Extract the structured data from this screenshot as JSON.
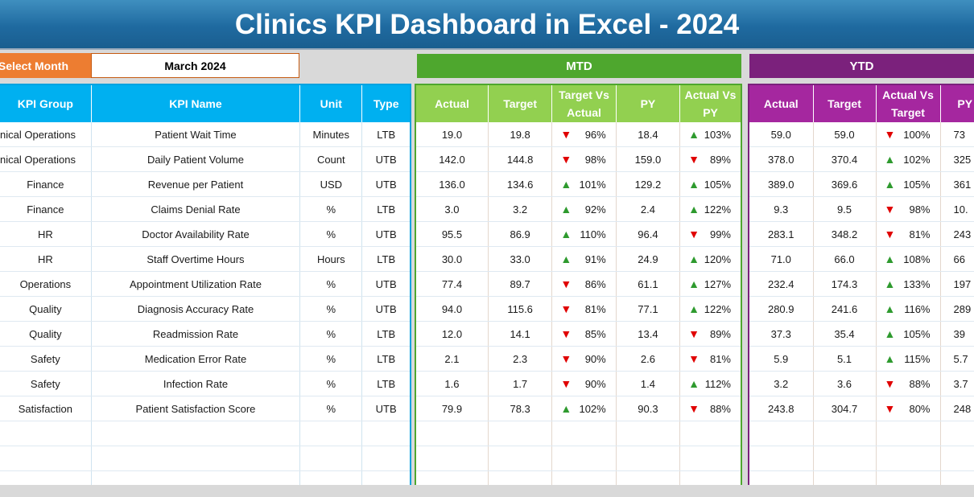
{
  "title": "Clinics KPI Dashboard in Excel - 2024",
  "month_selector": {
    "label": "Select Month",
    "value": "March 2024"
  },
  "sections": {
    "mtd": "MTD",
    "ytd": "YTD"
  },
  "left_headers": [
    "KPI Group",
    "KPI Name",
    "Unit",
    "Type"
  ],
  "mtd_headers": [
    "Actual",
    "Target",
    "Target Vs Actual",
    "PY",
    "Actual Vs PY"
  ],
  "ytd_headers": [
    "Actual",
    "Target",
    "Actual Vs Target",
    "PY"
  ],
  "colors": {
    "up": "#2e9a2e",
    "down": "#e00000",
    "mtd": "#92d050",
    "ytd": "#a5279f",
    "left": "#00b0f0"
  },
  "rows": [
    {
      "group": "nical Operations",
      "name": "Patient Wait Time",
      "unit": "Minutes",
      "type": "LTB",
      "mtd": {
        "actual": "19.0",
        "target": "19.8",
        "tva_dir": "down",
        "tva": "96%",
        "py": "18.4",
        "avp_dir": "up",
        "avp": "103%"
      },
      "ytd": {
        "actual": "59.0",
        "target": "59.0",
        "avt_dir": "down",
        "avt": "100%",
        "py": "73"
      }
    },
    {
      "group": "nical Operations",
      "name": "Daily Patient Volume",
      "unit": "Count",
      "type": "UTB",
      "mtd": {
        "actual": "142.0",
        "target": "144.8",
        "tva_dir": "down",
        "tva": "98%",
        "py": "159.0",
        "avp_dir": "down",
        "avp": "89%"
      },
      "ytd": {
        "actual": "378.0",
        "target": "370.4",
        "avt_dir": "up",
        "avt": "102%",
        "py": "325"
      }
    },
    {
      "group": "Finance",
      "name": "Revenue per Patient",
      "unit": "USD",
      "type": "UTB",
      "mtd": {
        "actual": "136.0",
        "target": "134.6",
        "tva_dir": "up",
        "tva": "101%",
        "py": "129.2",
        "avp_dir": "up",
        "avp": "105%"
      },
      "ytd": {
        "actual": "389.0",
        "target": "369.6",
        "avt_dir": "up",
        "avt": "105%",
        "py": "361"
      }
    },
    {
      "group": "Finance",
      "name": "Claims Denial Rate",
      "unit": "%",
      "type": "LTB",
      "mtd": {
        "actual": "3.0",
        "target": "3.2",
        "tva_dir": "up",
        "tva": "92%",
        "py": "2.4",
        "avp_dir": "up",
        "avp": "122%"
      },
      "ytd": {
        "actual": "9.3",
        "target": "9.5",
        "avt_dir": "down",
        "avt": "98%",
        "py": "10."
      }
    },
    {
      "group": "HR",
      "name": "Doctor Availability Rate",
      "unit": "%",
      "type": "UTB",
      "mtd": {
        "actual": "95.5",
        "target": "86.9",
        "tva_dir": "up",
        "tva": "110%",
        "py": "96.4",
        "avp_dir": "down",
        "avp": "99%"
      },
      "ytd": {
        "actual": "283.1",
        "target": "348.2",
        "avt_dir": "down",
        "avt": "81%",
        "py": "243"
      }
    },
    {
      "group": "HR",
      "name": "Staff Overtime Hours",
      "unit": "Hours",
      "type": "LTB",
      "mtd": {
        "actual": "30.0",
        "target": "33.0",
        "tva_dir": "up",
        "tva": "91%",
        "py": "24.9",
        "avp_dir": "up",
        "avp": "120%"
      },
      "ytd": {
        "actual": "71.0",
        "target": "66.0",
        "avt_dir": "up",
        "avt": "108%",
        "py": "66"
      }
    },
    {
      "group": "Operations",
      "name": "Appointment Utilization Rate",
      "unit": "%",
      "type": "UTB",
      "mtd": {
        "actual": "77.4",
        "target": "89.7",
        "tva_dir": "down",
        "tva": "86%",
        "py": "61.1",
        "avp_dir": "up",
        "avp": "127%"
      },
      "ytd": {
        "actual": "232.4",
        "target": "174.3",
        "avt_dir": "up",
        "avt": "133%",
        "py": "197"
      }
    },
    {
      "group": "Quality",
      "name": "Diagnosis Accuracy Rate",
      "unit": "%",
      "type": "UTB",
      "mtd": {
        "actual": "94.0",
        "target": "115.6",
        "tva_dir": "down",
        "tva": "81%",
        "py": "77.1",
        "avp_dir": "up",
        "avp": "122%"
      },
      "ytd": {
        "actual": "280.9",
        "target": "241.6",
        "avt_dir": "up",
        "avt": "116%",
        "py": "289"
      }
    },
    {
      "group": "Quality",
      "name": "Readmission Rate",
      "unit": "%",
      "type": "LTB",
      "mtd": {
        "actual": "12.0",
        "target": "14.1",
        "tva_dir": "down",
        "tva": "85%",
        "py": "13.4",
        "avp_dir": "down",
        "avp": "89%"
      },
      "ytd": {
        "actual": "37.3",
        "target": "35.4",
        "avt_dir": "up",
        "avt": "105%",
        "py": "39"
      }
    },
    {
      "group": "Safety",
      "name": "Medication Error Rate",
      "unit": "%",
      "type": "LTB",
      "mtd": {
        "actual": "2.1",
        "target": "2.3",
        "tva_dir": "down",
        "tva": "90%",
        "py": "2.6",
        "avp_dir": "down",
        "avp": "81%"
      },
      "ytd": {
        "actual": "5.9",
        "target": "5.1",
        "avt_dir": "up",
        "avt": "115%",
        "py": "5.7"
      }
    },
    {
      "group": "Safety",
      "name": "Infection Rate",
      "unit": "%",
      "type": "LTB",
      "mtd": {
        "actual": "1.6",
        "target": "1.7",
        "tva_dir": "down",
        "tva": "90%",
        "py": "1.4",
        "avp_dir": "up",
        "avp": "112%"
      },
      "ytd": {
        "actual": "3.2",
        "target": "3.6",
        "avt_dir": "down",
        "avt": "88%",
        "py": "3.7"
      }
    },
    {
      "group": "Satisfaction",
      "name": "Patient Satisfaction Score",
      "unit": "%",
      "type": "UTB",
      "mtd": {
        "actual": "79.9",
        "target": "78.3",
        "tva_dir": "up",
        "tva": "102%",
        "py": "90.3",
        "avp_dir": "down",
        "avp": "88%"
      },
      "ytd": {
        "actual": "243.8",
        "target": "304.7",
        "avt_dir": "down",
        "avt": "80%",
        "py": "248"
      }
    }
  ],
  "empty_rows": 3
}
